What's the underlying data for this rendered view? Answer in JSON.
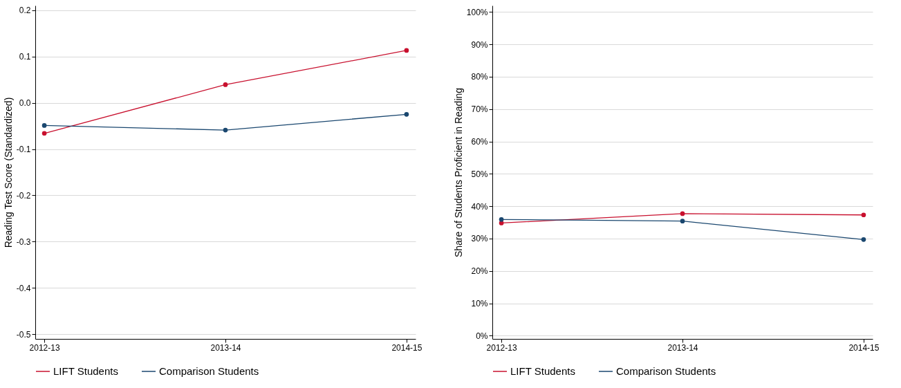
{
  "chart_data": [
    {
      "type": "line",
      "ylabel": "Reading Test Score (Standardized)",
      "categories": [
        "2012-13",
        "2013-14",
        "2014-15"
      ],
      "series": [
        {
          "name": "LIFT Students",
          "color": "#c8102e",
          "values": [
            -0.066,
            0.039,
            0.113
          ]
        },
        {
          "name": "Comparison Students",
          "color": "#1a476f",
          "values": [
            -0.049,
            -0.059,
            -0.025
          ]
        }
      ],
      "ylim": [
        -0.51,
        0.21
      ],
      "yticks": [
        {
          "value": -0.5,
          "label": "-0.5"
        },
        {
          "value": -0.4,
          "label": "-0.4"
        },
        {
          "value": -0.3,
          "label": "-0.3"
        },
        {
          "value": -0.2,
          "label": "-0.2"
        },
        {
          "value": -0.1,
          "label": "-0.1"
        },
        {
          "value": 0,
          "label": "0.0"
        },
        {
          "value": 0.1,
          "label": "0.1"
        },
        {
          "value": 0.2,
          "label": "0.2"
        }
      ],
      "grid": "y",
      "legend": "bottom",
      "marker": "circle",
      "line_style": "solid"
    },
    {
      "type": "line",
      "ylabel": "Share of Students Proficient in Reading",
      "categories": [
        "2012-13",
        "2013-14",
        "2014-15"
      ],
      "series": [
        {
          "name": "LIFT Students",
          "color": "#c8102e",
          "values": [
            34.8,
            37.7,
            37.3
          ]
        },
        {
          "name": "Comparison Students",
          "color": "#1a476f",
          "values": [
            35.9,
            35.4,
            29.7
          ]
        }
      ],
      "ylim": [
        -1,
        102
      ],
      "yticks": [
        {
          "value": 0,
          "label": "0%"
        },
        {
          "value": 10,
          "label": "10%"
        },
        {
          "value": 20,
          "label": "20%"
        },
        {
          "value": 30,
          "label": "30%"
        },
        {
          "value": 40,
          "label": "40%"
        },
        {
          "value": 50,
          "label": "50%"
        },
        {
          "value": 60,
          "label": "60%"
        },
        {
          "value": 70,
          "label": "70%"
        },
        {
          "value": 80,
          "label": "80%"
        },
        {
          "value": 90,
          "label": "90%"
        },
        {
          "value": 100,
          "label": "100%"
        }
      ],
      "grid": "y",
      "legend": "bottom",
      "marker": "circle",
      "line_style": "solid"
    }
  ]
}
